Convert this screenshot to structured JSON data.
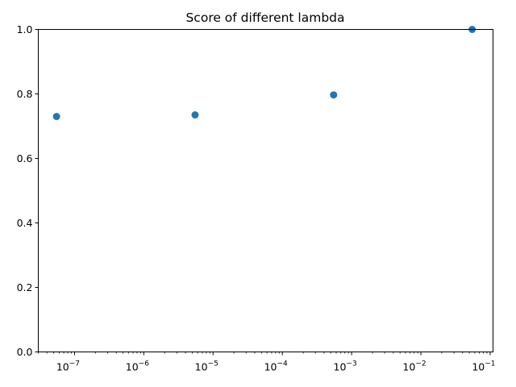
{
  "chart_data": {
    "type": "scatter",
    "title": "Score of different lambda",
    "xlabel": "",
    "ylabel": "",
    "x_scale": "log",
    "xlim": [
      3e-08,
      0.11
    ],
    "ylim": [
      0.0,
      1.0
    ],
    "grid": false,
    "legend": "none",
    "point_color": "#1f77b4",
    "x_ticks": [
      {
        "base": "10",
        "exp": "−7",
        "value": 1e-07
      },
      {
        "base": "10",
        "exp": "−6",
        "value": 1e-06
      },
      {
        "base": "10",
        "exp": "−5",
        "value": 1e-05
      },
      {
        "base": "10",
        "exp": "−4",
        "value": 0.0001
      },
      {
        "base": "10",
        "exp": "−3",
        "value": 0.001
      },
      {
        "base": "10",
        "exp": "−2",
        "value": 0.01
      },
      {
        "base": "10",
        "exp": "−1",
        "value": 0.1
      }
    ],
    "y_ticks": [
      "0.0",
      "0.2",
      "0.4",
      "0.6",
      "0.8",
      "1.0"
    ],
    "points": [
      {
        "x": 5.5e-08,
        "y": 0.73
      },
      {
        "x": 5.5e-06,
        "y": 0.735
      },
      {
        "x": 0.00055,
        "y": 0.797
      },
      {
        "x": 0.055,
        "y": 1.0
      }
    ]
  }
}
